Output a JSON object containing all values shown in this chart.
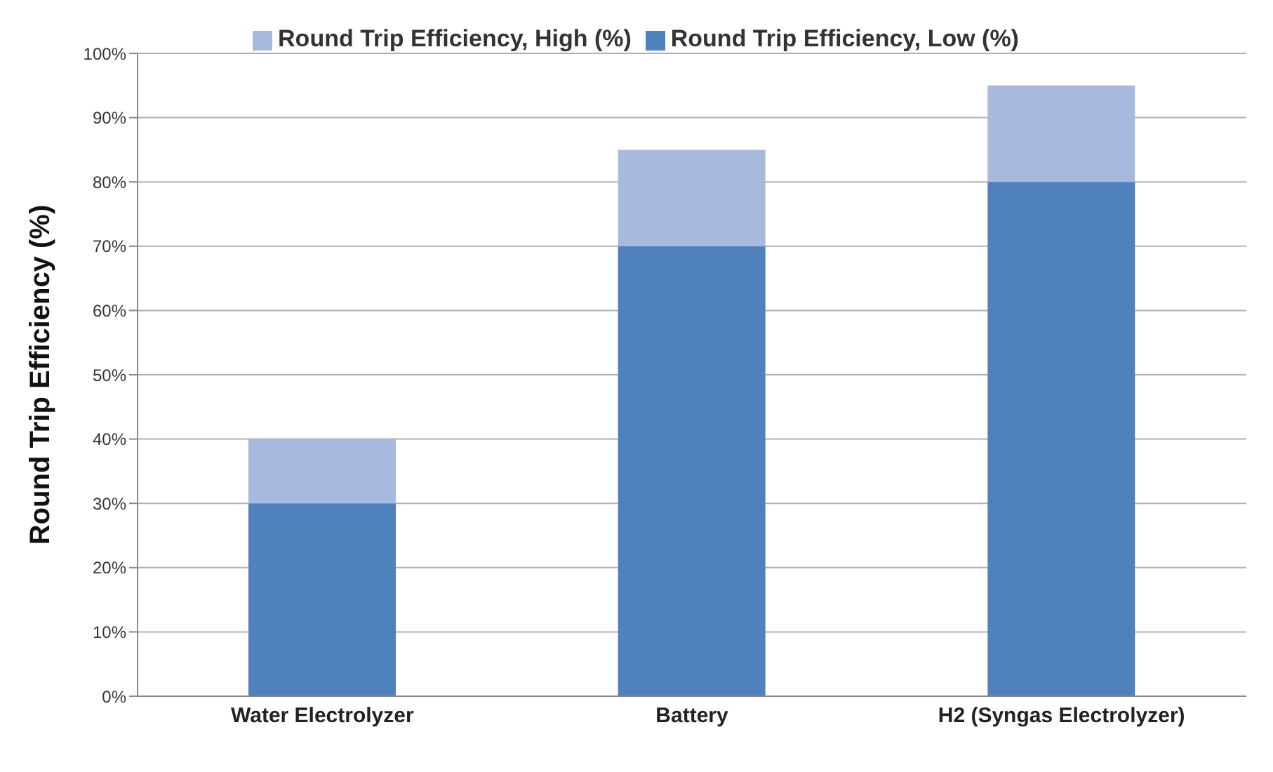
{
  "chart_data": {
    "type": "bar",
    "stacked": true,
    "ylabel": "Round Trip Efficiency (%)",
    "categories": [
      "Water Electrolyzer",
      "Battery",
      "H2 (Syngas Electrolyzer)"
    ],
    "series": [
      {
        "name": "Round Trip Efficiency, Low (%)",
        "color": "#4f81bd",
        "values": [
          30,
          70,
          80
        ]
      },
      {
        "name": "Round Trip Efficiency, High (%)",
        "color": "#a7bade",
        "values": [
          10,
          15,
          15
        ]
      }
    ],
    "ylim": [
      0,
      100
    ],
    "yticks": [
      {
        "value": 0,
        "label": "0%"
      },
      {
        "value": 10,
        "label": "10%"
      },
      {
        "value": 20,
        "label": "20%"
      },
      {
        "value": 30,
        "label": "30%"
      },
      {
        "value": 40,
        "label": "40%"
      },
      {
        "value": 50,
        "label": "50%"
      },
      {
        "value": 60,
        "label": "60%"
      },
      {
        "value": 70,
        "label": "70%"
      },
      {
        "value": 80,
        "label": "80%"
      },
      {
        "value": 90,
        "label": "90%"
      },
      {
        "value": 100,
        "label": "100%"
      }
    ],
    "grid": "y",
    "legend": "top"
  }
}
